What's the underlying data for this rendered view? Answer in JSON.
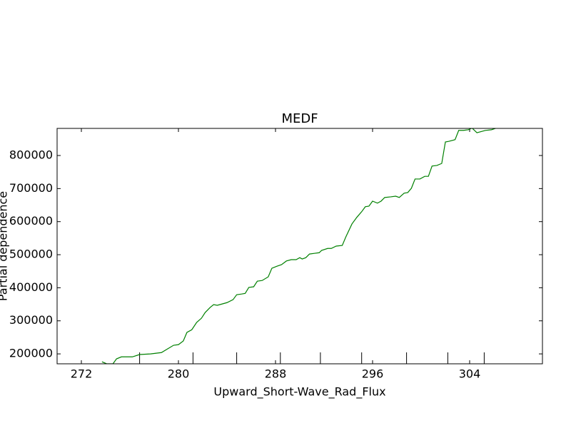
{
  "chart_data": {
    "type": "line",
    "title": "MEDF",
    "xlabel": "Upward_Short-Wave_Rad_Flux",
    "ylabel": "Partial dependence",
    "xlim": [
      270,
      310
    ],
    "ylim": [
      170000,
      882000
    ],
    "xticks": [
      272,
      280,
      288,
      296,
      304
    ],
    "yticks": [
      200000,
      300000,
      400000,
      500000,
      600000,
      700000,
      800000
    ],
    "deciles": [
      276.8,
      281.2,
      284.8,
      288.4,
      291.7,
      295.1,
      298.8,
      302.2,
      305.2
    ],
    "color": "#008000",
    "x": [
      273.7,
      274.1,
      274.6,
      274.9,
      275.3,
      276.2,
      276.8,
      277.7,
      278.6,
      279.1,
      279.6,
      280.0,
      280.4,
      280.7,
      281.1,
      281.5,
      281.9,
      282.2,
      282.6,
      282.9,
      283.2,
      283.6,
      284.0,
      284.5,
      284.8,
      285.2,
      285.5,
      285.8,
      286.2,
      286.5,
      286.9,
      287.4,
      287.7,
      288.1,
      288.5,
      288.9,
      289.3,
      289.7,
      290.0,
      290.2,
      290.5,
      290.8,
      291.2,
      291.6,
      291.8,
      292.3,
      292.6,
      293.0,
      293.5,
      293.8,
      294.3,
      294.7,
      295.1,
      295.4,
      295.7,
      296.0,
      296.4,
      296.7,
      297.0,
      297.5,
      297.9,
      298.2,
      298.6,
      298.9,
      299.2,
      299.5,
      299.9,
      300.3,
      300.6,
      300.9,
      301.3,
      301.7,
      302.0,
      302.3,
      302.8,
      303.1,
      303.5,
      303.9,
      304.2,
      304.6,
      305.3,
      305.8,
      306.2,
      306.9
    ],
    "values": [
      176000,
      170000,
      170000,
      185000,
      191000,
      191000,
      198000,
      200000,
      204000,
      215000,
      226000,
      228000,
      239000,
      265000,
      273000,
      295000,
      308000,
      325000,
      340000,
      349000,
      347000,
      351000,
      355000,
      364000,
      379000,
      381000,
      383000,
      401000,
      403000,
      420000,
      422000,
      433000,
      459000,
      465000,
      470000,
      481000,
      485000,
      485000,
      491000,
      487000,
      491000,
      502000,
      504000,
      506000,
      513000,
      519000,
      519000,
      526000,
      528000,
      554000,
      593000,
      613000,
      630000,
      645000,
      647000,
      662000,
      656000,
      662000,
      673000,
      675000,
      677000,
      673000,
      686000,
      688000,
      701000,
      729000,
      729000,
      737000,
      737000,
      768000,
      770000,
      776000,
      841000,
      843000,
      848000,
      876000,
      876000,
      878000,
      883000,
      869000,
      876000,
      878000,
      883000,
      883000
    ]
  }
}
